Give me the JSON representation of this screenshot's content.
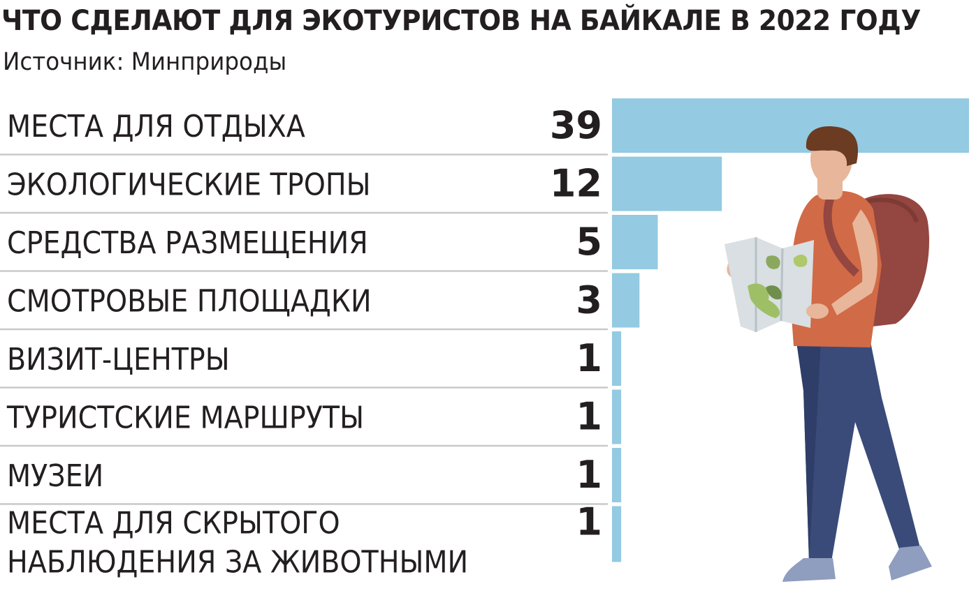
{
  "title": "ЧТО СДЕЛАЮТ ДЛЯ ЭКОТУРИСТОВ НА БАЙКАЛЕ В 2022 ГОДУ",
  "subtitle": "Источник: Минприроды",
  "colors": {
    "bar": "#94cae2",
    "divider": "#c8c9cb",
    "text": "#231f20"
  },
  "illustration": "hiker-with-map-and-backpack",
  "chart_data": {
    "type": "bar",
    "orientation": "horizontal",
    "categories": [
      "МЕСТА ДЛЯ ОТДЫХА",
      "ЭКОЛОГИЧЕСКИЕ ТРОПЫ",
      "СРЕДСТВА РАЗМЕЩЕНИЯ",
      "СМОТРОВЫЕ ПЛОЩАДКИ",
      "ВИЗИТ-ЦЕНТРЫ",
      "ТУРИСТСКИЕ МАРШРУТЫ",
      "МУЗЕИ",
      "МЕСТА ДЛЯ СКРЫТОГО НАБЛЮДЕНИЯ ЗА ЖИВОТНЫМИ"
    ],
    "values": [
      39,
      12,
      5,
      3,
      1,
      1,
      1,
      1
    ],
    "value_labels": [
      "39",
      "12",
      "5",
      "3",
      "1",
      "1",
      "1",
      "1"
    ],
    "xlim": [
      0,
      39
    ],
    "grid": false,
    "legend": "none"
  }
}
